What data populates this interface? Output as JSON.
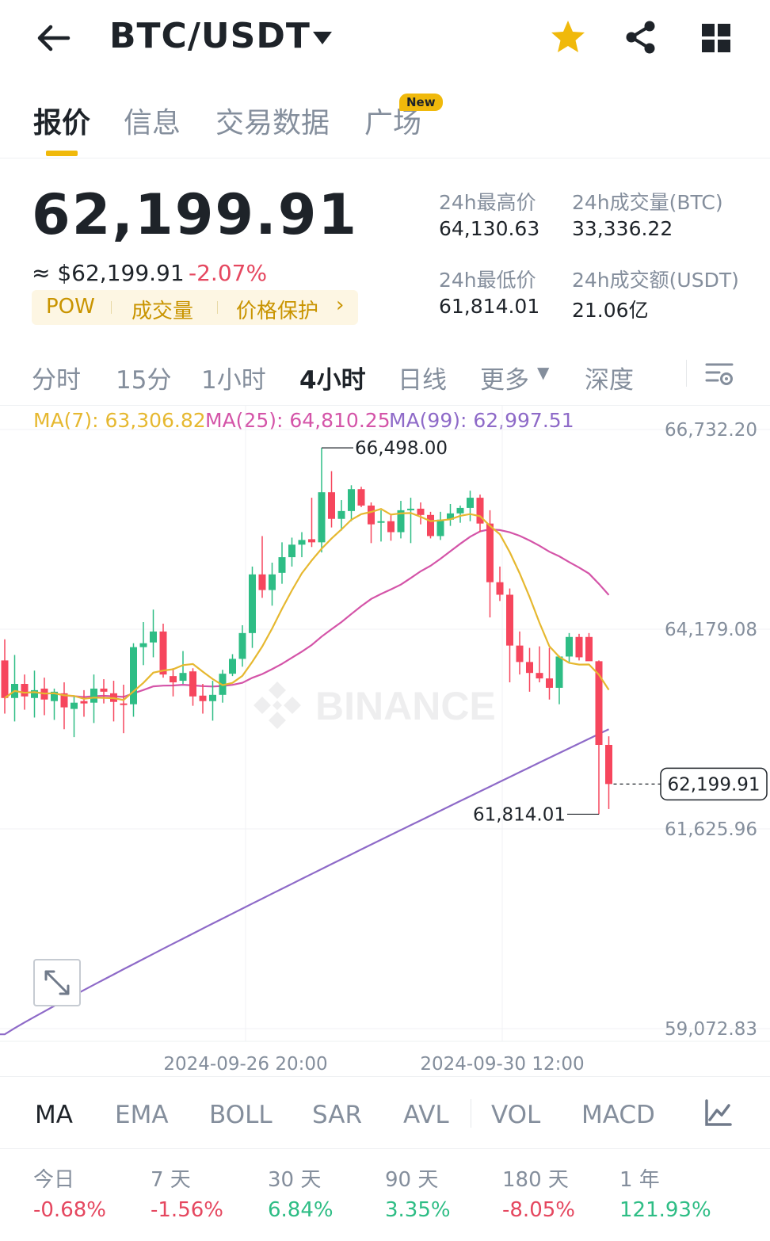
{
  "header": {
    "pair": "BTC/USDT",
    "icons": [
      "back-arrow-icon",
      "caret-down-icon",
      "star-icon",
      "share-icon",
      "grid-icon"
    ],
    "star_color": "#f0b90b"
  },
  "tabs": [
    {
      "label": "报价",
      "active": true
    },
    {
      "label": "信息",
      "active": false
    },
    {
      "label": "交易数据",
      "active": false
    },
    {
      "label": "广场",
      "active": false
    }
  ],
  "new_badge": "New",
  "price": {
    "last": "62,199.91",
    "approx": "≈ $62,199.91",
    "change": "-2.07%",
    "tags": [
      "POW",
      "成交量",
      "价格保护"
    ],
    "tag_arrow": "›"
  },
  "stats": {
    "high_label": "24h最高价",
    "high_value": "64,130.63",
    "low_label": "24h最低价",
    "low_value": "61,814.01",
    "vol_btc_label": "24h成交量(BTC)",
    "vol_btc_value": "33,336.22",
    "vol_usdt_label": "24h成交额(USDT)",
    "vol_usdt_value": "21.06亿"
  },
  "intervals": [
    "分时",
    "15分",
    "1小时",
    "4小时",
    "日线",
    "更多",
    "深度"
  ],
  "active_interval": "4小时",
  "more_caret": "▼",
  "ma_legend": {
    "ma7": "MA(7): 63,306.82",
    "ma25": "MA(25): 64,810.25",
    "ma99": "MA(99): 62,997.51"
  },
  "chart_data": {
    "type": "candlestick",
    "watermark": "BINANCE",
    "y_ticks": [
      "66,732.20",
      "64,179.08",
      "61,625.96",
      "59,072.83"
    ],
    "y_range": [
      59072.83,
      66732.2
    ],
    "x_labels": [
      "2024-09-26 20:00",
      "2024-09-30 12:00"
    ],
    "max_marker": "66,498.00",
    "min_marker": "61,814.01",
    "last_price_tag": "62,199.91",
    "colors": {
      "up": "#2ebd85",
      "down": "#f6465d",
      "ma7": "#e6b830",
      "ma25": "#d454a8",
      "ma99": "#8e6ac8"
    },
    "candles": [
      {
        "o": 63780,
        "h": 64050,
        "l": 63100,
        "c": 63300
      },
      {
        "o": 63300,
        "h": 63850,
        "l": 63000,
        "c": 63480
      },
      {
        "o": 63480,
        "h": 63600,
        "l": 63150,
        "c": 63320
      },
      {
        "o": 63300,
        "h": 63650,
        "l": 63050,
        "c": 63400
      },
      {
        "o": 63420,
        "h": 63560,
        "l": 63080,
        "c": 63280
      },
      {
        "o": 63260,
        "h": 63420,
        "l": 63020,
        "c": 63380
      },
      {
        "o": 63360,
        "h": 63500,
        "l": 62900,
        "c": 63180
      },
      {
        "o": 63160,
        "h": 63320,
        "l": 62800,
        "c": 63240
      },
      {
        "o": 63260,
        "h": 63400,
        "l": 63060,
        "c": 63230
      },
      {
        "o": 63240,
        "h": 63600,
        "l": 62980,
        "c": 63420
      },
      {
        "o": 63420,
        "h": 63540,
        "l": 63230,
        "c": 63380
      },
      {
        "o": 63360,
        "h": 63520,
        "l": 63000,
        "c": 63250
      },
      {
        "o": 63230,
        "h": 63470,
        "l": 62850,
        "c": 63220
      },
      {
        "o": 63220,
        "h": 64000,
        "l": 63060,
        "c": 63950
      },
      {
        "o": 63950,
        "h": 64270,
        "l": 63720,
        "c": 64000
      },
      {
        "o": 64010,
        "h": 64430,
        "l": 63820,
        "c": 64150
      },
      {
        "o": 64150,
        "h": 64250,
        "l": 63560,
        "c": 63600
      },
      {
        "o": 63580,
        "h": 63680,
        "l": 63320,
        "c": 63500
      },
      {
        "o": 63520,
        "h": 63900,
        "l": 63480,
        "c": 63620
      },
      {
        "o": 63640,
        "h": 63680,
        "l": 63200,
        "c": 63320
      },
      {
        "o": 63330,
        "h": 63480,
        "l": 63100,
        "c": 63260
      },
      {
        "o": 63260,
        "h": 63520,
        "l": 63010,
        "c": 63340
      },
      {
        "o": 63340,
        "h": 63660,
        "l": 63240,
        "c": 63610
      },
      {
        "o": 63610,
        "h": 63860,
        "l": 63580,
        "c": 63800
      },
      {
        "o": 63800,
        "h": 64230,
        "l": 63700,
        "c": 64130
      },
      {
        "o": 64130,
        "h": 64980,
        "l": 63940,
        "c": 64880
      },
      {
        "o": 64880,
        "h": 65370,
        "l": 64580,
        "c": 64680
      },
      {
        "o": 64680,
        "h": 65030,
        "l": 64480,
        "c": 64880
      },
      {
        "o": 64900,
        "h": 65290,
        "l": 64760,
        "c": 65100
      },
      {
        "o": 65100,
        "h": 65350,
        "l": 64980,
        "c": 65260
      },
      {
        "o": 65260,
        "h": 65420,
        "l": 65100,
        "c": 65320
      },
      {
        "o": 65330,
        "h": 65860,
        "l": 65230,
        "c": 65290
      },
      {
        "o": 65290,
        "h": 66498,
        "l": 65160,
        "c": 65930
      },
      {
        "o": 65930,
        "h": 66200,
        "l": 65480,
        "c": 65590
      },
      {
        "o": 65590,
        "h": 65830,
        "l": 65440,
        "c": 65690
      },
      {
        "o": 65690,
        "h": 66020,
        "l": 65560,
        "c": 65970
      },
      {
        "o": 65970,
        "h": 66000,
        "l": 65740,
        "c": 65760
      },
      {
        "o": 65760,
        "h": 65800,
        "l": 65280,
        "c": 65520
      },
      {
        "o": 65540,
        "h": 65700,
        "l": 65300,
        "c": 65560
      },
      {
        "o": 65560,
        "h": 65650,
        "l": 65310,
        "c": 65420
      },
      {
        "o": 65420,
        "h": 65820,
        "l": 65340,
        "c": 65700
      },
      {
        "o": 65700,
        "h": 65860,
        "l": 65280,
        "c": 65720
      },
      {
        "o": 65720,
        "h": 65800,
        "l": 65520,
        "c": 65640
      },
      {
        "o": 65640,
        "h": 65680,
        "l": 65340,
        "c": 65370
      },
      {
        "o": 65370,
        "h": 65680,
        "l": 65320,
        "c": 65580
      },
      {
        "o": 65580,
        "h": 65780,
        "l": 65500,
        "c": 65660
      },
      {
        "o": 65660,
        "h": 65760,
        "l": 65540,
        "c": 65730
      },
      {
        "o": 65730,
        "h": 65950,
        "l": 65560,
        "c": 65860
      },
      {
        "o": 65860,
        "h": 65900,
        "l": 65420,
        "c": 65530
      },
      {
        "o": 65530,
        "h": 65700,
        "l": 64330,
        "c": 64780
      },
      {
        "o": 64780,
        "h": 64980,
        "l": 64540,
        "c": 64620
      },
      {
        "o": 64620,
        "h": 64700,
        "l": 63500,
        "c": 63970
      },
      {
        "o": 63970,
        "h": 64150,
        "l": 63600,
        "c": 63760
      },
      {
        "o": 63760,
        "h": 63940,
        "l": 63380,
        "c": 63620
      },
      {
        "o": 63620,
        "h": 63960,
        "l": 63500,
        "c": 63550
      },
      {
        "o": 63550,
        "h": 63940,
        "l": 63280,
        "c": 63430
      },
      {
        "o": 63430,
        "h": 63840,
        "l": 63220,
        "c": 63830
      },
      {
        "o": 63830,
        "h": 64130,
        "l": 63760,
        "c": 64080
      },
      {
        "o": 64080,
        "h": 64120,
        "l": 63780,
        "c": 63820
      },
      {
        "o": 64080,
        "h": 64130,
        "l": 63800,
        "c": 63770
      },
      {
        "o": 63770,
        "h": 63780,
        "l": 61814,
        "c": 62700
      },
      {
        "o": 62700,
        "h": 62810,
        "l": 61880,
        "c": 62200
      }
    ]
  },
  "expand_icon": "expand-icon",
  "indicators": [
    "MA",
    "EMA",
    "BOLL",
    "SAR",
    "AVL",
    "VOL",
    "MACD"
  ],
  "active_indicator": "MA",
  "performance": [
    {
      "label": "今日",
      "value": "-0.68%",
      "dir": "down"
    },
    {
      "label": "7 天",
      "value": "-1.56%",
      "dir": "down"
    },
    {
      "label": "30 天",
      "value": "6.84%",
      "dir": "up"
    },
    {
      "label": "90 天",
      "value": "3.35%",
      "dir": "up"
    },
    {
      "label": "180 天",
      "value": "-8.05%",
      "dir": "down"
    },
    {
      "label": "1 年",
      "value": "121.93%",
      "dir": "up"
    }
  ]
}
